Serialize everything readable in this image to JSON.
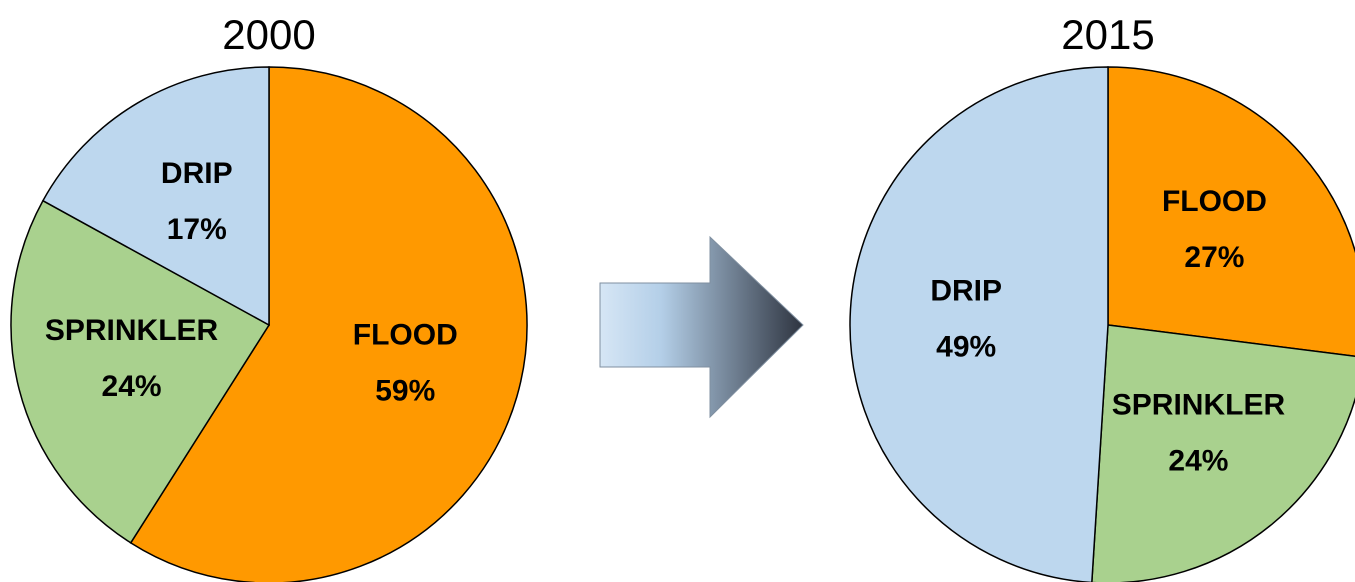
{
  "chart_data": [
    {
      "type": "pie",
      "title": "2000",
      "categories": [
        "FLOOD",
        "SPRINKLER",
        "DRIP"
      ],
      "values": [
        59,
        24,
        17
      ],
      "value_labels": [
        "59%",
        "24%",
        "17%"
      ],
      "colors": [
        "#ff9900",
        "#a9d18e",
        "#bdd7ee"
      ]
    },
    {
      "type": "pie",
      "title": "2015",
      "categories": [
        "FLOOD",
        "SPRINKLER",
        "DRIP"
      ],
      "values": [
        27,
        24,
        49
      ],
      "value_labels": [
        "27%",
        "24%",
        "49%"
      ],
      "colors": [
        "#ff9900",
        "#a9d18e",
        "#bdd7ee"
      ]
    }
  ]
}
